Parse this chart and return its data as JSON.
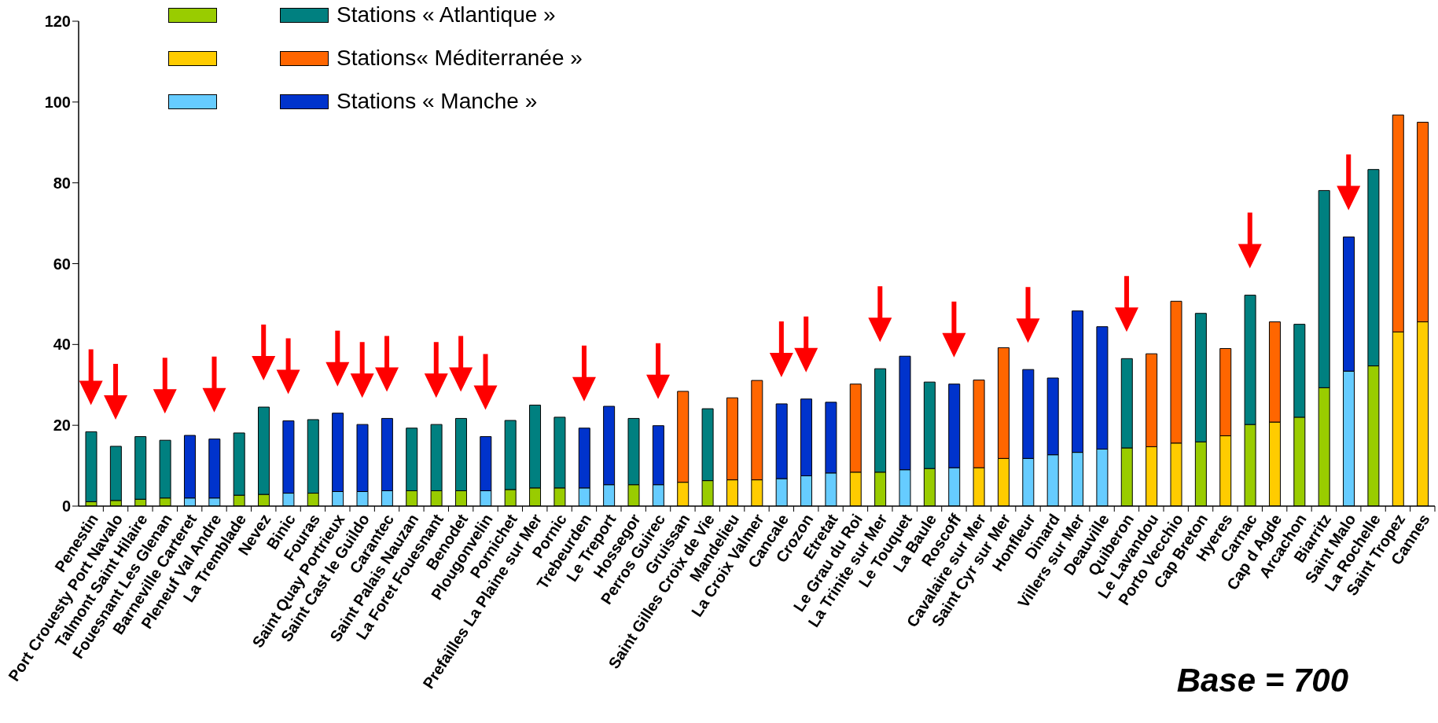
{
  "chart_data": {
    "type": "bar",
    "stacked": true,
    "legend": "top left",
    "categories": [
      "Penestin",
      "Port Crouesty Port Navalo",
      "Talmont Saint Hilaire",
      "Fouesnant Les Glenan",
      "Barneville Carteret",
      "Pleneuf Val Andre",
      "La Tremblade",
      "Nevez",
      "Binic",
      "Fouras",
      "Saint Quay Portrieux",
      "Saint Cast le Guildo",
      "Carantec",
      "Saint Palais Nauzan",
      "La Foret Fouesnant",
      "Benodet",
      "Plougonvelin",
      "Pornichet",
      "Prefailles La Plaine sur Mer",
      "Pornic",
      "Trebeurden",
      "Le Treport",
      "Hossegor",
      "Perros Guirec",
      "Gruissan",
      "Saint Gilles Croix de Vie",
      "Mandelieu",
      "La Croix Valmer",
      "Cancale",
      "Crozon",
      "Etretat",
      "Le Grau du Roi",
      "La Trinite sur Mer",
      "Le Touquet",
      "La Baule",
      "Roscoff",
      "Cavalaire sur Mer",
      "Saint Cyr sur Mer",
      "Honfleur",
      "Dinard",
      "Villers sur Mer",
      "Deauville",
      "Quiberon",
      "Le Lavandou",
      "Porto Vecchio",
      "Cap Breton",
      "Hyeres",
      "Carnac",
      "Cap d Agde",
      "Arcachon",
      "Biarritz",
      "Saint Malo",
      "La Rochelle",
      "Saint Tropez",
      "Cannes"
    ],
    "series": [
      {
        "color": "#99cc00",
        "values": [
          1.1,
          1.4,
          1.7,
          2.0,
          null,
          null,
          2.7,
          2.9,
          null,
          3.2,
          null,
          null,
          null,
          3.8,
          3.8,
          3.8,
          null,
          4.1,
          4.5,
          4.5,
          null,
          null,
          5.3,
          null,
          null,
          6.3,
          null,
          null,
          null,
          null,
          null,
          null,
          8.4,
          null,
          9.3,
          null,
          null,
          null,
          null,
          null,
          null,
          null,
          14.4,
          null,
          null,
          15.9,
          null,
          20.2,
          null,
          22.0,
          29.3,
          null,
          34.7,
          null,
          null
        ]
      },
      {
        "color": "#ffcc00",
        "values": [
          null,
          null,
          null,
          null,
          null,
          null,
          null,
          null,
          null,
          null,
          null,
          null,
          null,
          null,
          null,
          null,
          null,
          null,
          null,
          null,
          null,
          null,
          null,
          null,
          5.9,
          null,
          6.5,
          6.5,
          null,
          null,
          null,
          8.4,
          null,
          null,
          null,
          null,
          9.5,
          11.8,
          null,
          null,
          null,
          null,
          null,
          14.7,
          15.6,
          null,
          17.4,
          null,
          20.8,
          null,
          null,
          null,
          null,
          43.1,
          45.6
        ]
      },
      {
        "color": "#66ccff",
        "values": [
          null,
          null,
          null,
          null,
          2.0,
          2.0,
          null,
          null,
          3.2,
          null,
          3.6,
          3.6,
          3.8,
          null,
          null,
          null,
          3.8,
          null,
          null,
          null,
          4.5,
          5.3,
          null,
          5.3,
          null,
          null,
          null,
          null,
          6.8,
          7.5,
          8.2,
          null,
          null,
          9.0,
          null,
          9.5,
          null,
          null,
          11.8,
          12.7,
          13.3,
          14.1,
          null,
          null,
          null,
          null,
          null,
          null,
          null,
          null,
          null,
          33.4,
          null,
          null,
          null
        ]
      },
      {
        "name": "Stations « Atlantique »",
        "color": "#008080",
        "values": [
          17.3,
          13.4,
          15.5,
          14.3,
          null,
          null,
          15.4,
          21.6,
          null,
          18.2,
          null,
          null,
          null,
          15.5,
          16.4,
          17.9,
          null,
          17.1,
          20.5,
          17.5,
          null,
          null,
          16.4,
          null,
          null,
          17.8,
          null,
          null,
          null,
          null,
          null,
          null,
          25.6,
          null,
          21.4,
          null,
          null,
          null,
          null,
          null,
          null,
          null,
          22.1,
          null,
          null,
          31.8,
          null,
          32.0,
          null,
          23.0,
          48.8,
          null,
          48.6,
          null,
          null
        ]
      },
      {
        "name": "Stations« Méditerranée »",
        "color": "#ff6600",
        "values": [
          null,
          null,
          null,
          null,
          null,
          null,
          null,
          null,
          null,
          null,
          null,
          null,
          null,
          null,
          null,
          null,
          null,
          null,
          null,
          null,
          null,
          null,
          null,
          null,
          22.5,
          null,
          20.3,
          24.6,
          null,
          null,
          null,
          21.8,
          null,
          null,
          null,
          null,
          21.7,
          27.4,
          null,
          null,
          null,
          null,
          null,
          23.0,
          35.1,
          null,
          21.6,
          null,
          24.8,
          null,
          null,
          null,
          null,
          53.7,
          49.4
        ]
      },
      {
        "name": "Stations « Manche »",
        "color": "#0033cc",
        "values": [
          null,
          null,
          null,
          null,
          15.5,
          14.6,
          null,
          null,
          17.9,
          null,
          19.4,
          16.6,
          17.9,
          null,
          null,
          null,
          13.4,
          null,
          null,
          null,
          14.8,
          19.4,
          null,
          14.6,
          null,
          null,
          null,
          null,
          18.5,
          19.0,
          17.5,
          null,
          null,
          28.1,
          null,
          20.7,
          null,
          null,
          22.0,
          19.0,
          35.0,
          30.3,
          null,
          null,
          null,
          null,
          null,
          null,
          null,
          null,
          null,
          33.2,
          null,
          null,
          null
        ]
      }
    ],
    "ylim": [
      0,
      120
    ],
    "yticks": [
      0,
      20,
      40,
      60,
      80,
      100,
      120
    ],
    "annotations": [
      "Base = 700"
    ]
  }
}
